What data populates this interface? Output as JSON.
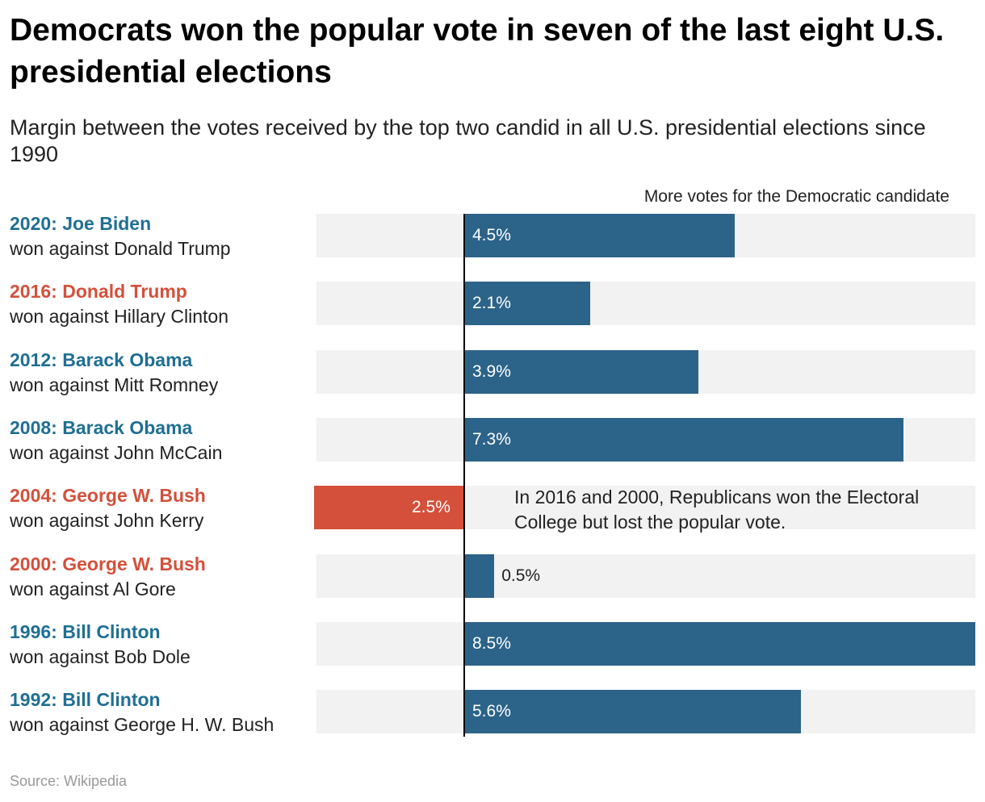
{
  "title": "Democrats won the popular vote in seven of the last eight U.S. presidential elections",
  "subtitle": "Margin between the votes received by the top two candid in all U.S. presidential elections since 1990",
  "source": "Source: Wikipedia",
  "colors": {
    "democrat": "#2c6389",
    "republican": "#d4503a",
    "dem_text": "#1f6f94",
    "rep_text": "#d4503a",
    "track": "#f2f2f2"
  },
  "chart_data": {
    "type": "bar",
    "orientation": "horizontal",
    "axis_label": "More votes for the Democratic candidate",
    "xlim": [
      -3,
      8.5
    ],
    "annotation": "In 2016 and 2000, Republicans won the Electoral College but lost the popular vote.",
    "rows": [
      {
        "heading": "2020: Joe Biden",
        "sub": "won against Donald Trump",
        "party": "democrat",
        "value": 4.5,
        "label": "4.5%"
      },
      {
        "heading": "2016: Donald Trump",
        "sub": "won against Hillary Clinton",
        "party": "republican",
        "value": 2.1,
        "label": "2.1%"
      },
      {
        "heading": "2012: Barack Obama",
        "sub": "won against Mitt Romney",
        "party": "democrat",
        "value": 3.9,
        "label": "3.9%"
      },
      {
        "heading": "2008: Barack Obama",
        "sub": "won against John McCain",
        "party": "democrat",
        "value": 7.3,
        "label": "7.3%"
      },
      {
        "heading": "2004: George W. Bush",
        "sub": "won against John Kerry",
        "party": "republican",
        "value": -2.5,
        "label": "2.5%"
      },
      {
        "heading": "2000: George W. Bush",
        "sub": "won against Al Gore",
        "party": "republican",
        "value": 0.5,
        "label": "0.5%"
      },
      {
        "heading": "1996: Bill Clinton",
        "sub": "won against Bob Dole",
        "party": "democrat",
        "value": 8.5,
        "label": "8.5%"
      },
      {
        "heading": "1992: Bill Clinton",
        "sub": "won against George H. W. Bush",
        "party": "democrat",
        "value": 5.6,
        "label": "5.6%"
      }
    ]
  }
}
